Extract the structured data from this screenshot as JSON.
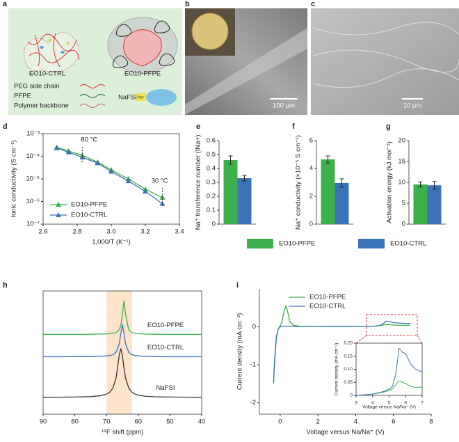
{
  "panel_a": {
    "label": "a",
    "material_1": "EO10-CTRL",
    "material_2": "EO10-PFPE",
    "legend": [
      "PEG side chain",
      "PFPE",
      "Polymer backbone"
    ],
    "salt": "NaFSI",
    "ion": "Na⁺"
  },
  "panel_b": {
    "label": "b",
    "scale_bar": "100 μm"
  },
  "panel_c": {
    "label": "c",
    "scale_bar": "10 μm"
  },
  "legend_efg": {
    "series": [
      {
        "name": "EO10-PFPE",
        "color": "#3cb04a"
      },
      {
        "name": "EO10-CTRL",
        "color": "#3a73b8"
      }
    ]
  },
  "chart_data": [
    {
      "label": "d",
      "type": "line",
      "log_y": true,
      "y_label": "Ionic conductivity (S cm⁻¹)",
      "x_label": "1,000/T (K⁻¹)",
      "x": [
        2.68,
        2.75,
        2.83,
        2.92,
        3.0,
        3.1,
        3.2,
        3.3
      ],
      "series": [
        {
          "name": "EO10-PFPE",
          "color": "#3cb04a",
          "values": [
            0.00025,
            0.00017,
            0.00011,
            5.5e-05,
            2.5e-05,
            1e-05,
            3.5e-06,
            1.5e-06
          ]
        },
        {
          "name": "EO10-CTRL",
          "color": "#3a73b8",
          "values": [
            0.00023,
            0.00015,
            9e-05,
            5e-05,
            2.1e-05,
            8e-06,
            2.8e-06,
            8e-07
          ]
        }
      ],
      "xlim": [
        2.6,
        3.4
      ],
      "xticks": [
        2.6,
        2.8,
        {
          "value": 3,
          "label": "3.0"
        },
        3.2,
        3.4
      ],
      "ylim": [
        1e-07,
        0.001
      ],
      "yticks": [
        {
          "value": 1e-07,
          "label": "10⁻⁷"
        },
        {
          "value": 1e-06,
          "label": "10⁻⁶"
        },
        {
          "value": 1e-05,
          "label": "10⁻⁵"
        },
        {
          "value": 0.0001,
          "label": "10⁻⁴"
        },
        {
          "value": 0.001,
          "label": "10⁻³"
        }
      ],
      "annotations": [
        "80 °C",
        "30 °C"
      ],
      "legend": "lower left"
    },
    {
      "label": "e",
      "type": "bar",
      "y_label": "Na⁺ transference number (tNa+)",
      "values": [
        0.46,
        0.33
      ],
      "errors": [
        0.03,
        0.02
      ],
      "ylim": [
        0,
        0.6
      ],
      "yticks": [
        0,
        0.1,
        0.2,
        0.3,
        0.4,
        0.5,
        0.6
      ]
    },
    {
      "label": "f",
      "type": "bar",
      "y_label": "Na⁺ conductivity (×10⁻⁵ S cm⁻¹)",
      "values": [
        4.65,
        2.95
      ],
      "errors": [
        0.25,
        0.3
      ],
      "ylim": [
        0,
        6
      ],
      "yticks": [
        0,
        2,
        4,
        6
      ]
    },
    {
      "label": "g",
      "type": "bar",
      "y_label": "Activation energy (kJ mol⁻¹)",
      "values": [
        9.5,
        9.3
      ],
      "errors": [
        0.6,
        0.9
      ],
      "ylim": [
        0,
        20
      ],
      "yticks": [
        0,
        5,
        10,
        15,
        20
      ]
    },
    {
      "label": "h",
      "type": "line",
      "x_label": "¹⁹F shift (ppm)",
      "x": [
        90,
        85,
        80,
        75,
        72,
        70,
        69,
        68,
        67,
        66,
        65.5,
        65,
        64.5,
        64,
        63,
        62,
        61,
        60,
        58,
        55,
        50,
        45,
        40
      ],
      "series": [
        {
          "name": "EO10-PFPE",
          "color": "#3cb04a",
          "values": [
            4.5,
            4.5,
            4.5,
            4.51,
            4.52,
            4.53,
            4.54,
            4.57,
            4.63,
            4.83,
            5.13,
            5.92,
            6.9,
            5.92,
            4.83,
            4.63,
            4.57,
            4.54,
            4.52,
            4.51,
            4.5,
            4.5,
            4.5
          ]
        },
        {
          "name": "EO10-CTRL",
          "color": "#3a73b8",
          "values": [
            2.9,
            2.9,
            2.91,
            2.91,
            2.93,
            2.96,
            2.99,
            3.05,
            3.22,
            3.8,
            4.55,
            5.2,
            4.55,
            3.8,
            3.22,
            3.05,
            2.99,
            2.96,
            2.93,
            2.91,
            2.9,
            2.9,
            2.9
          ]
        },
        {
          "name": "NaFSI",
          "color": "#333333",
          "values": [
            0.01,
            0.013,
            0.024,
            0.055,
            0.115,
            0.23,
            0.37,
            0.66,
            1.37,
            2.99,
            3.5,
            2.99,
            2.07,
            1.37,
            0.66,
            0.37,
            0.23,
            0.16,
            0.087,
            0.045,
            0.021,
            0.012,
            0.009
          ]
        }
      ],
      "xlim": [
        90,
        40
      ],
      "xticks": [
        90,
        80,
        70,
        60,
        50,
        40
      ],
      "ylim": [
        -1.2,
        7.6
      ],
      "band": [
        70,
        62
      ],
      "band_color": "#fbe3cc"
    },
    {
      "label": "i",
      "type": "line",
      "y_label": "Current density (mA cm⁻²)",
      "x_label": "Voltage versus Na/Na⁺ (V)",
      "x": [
        -0.35,
        -0.3,
        -0.2,
        -0.1,
        0,
        0.1,
        0.2,
        0.3,
        0.4,
        0.5,
        0.7,
        1,
        2,
        3,
        4,
        4.5,
        5,
        5.3,
        5.5,
        5.6,
        5.8,
        6,
        6.3,
        6.6,
        6.9
      ],
      "series": [
        {
          "name": "EO10-PFPE",
          "color": "#3cb04a",
          "values": [
            -1.5,
            -1.0,
            -0.3,
            -0.05,
            0.02,
            0.15,
            0.4,
            0.55,
            0.4,
            0.15,
            0.04,
            0.02,
            0.01,
            0.01,
            0.01,
            0.01,
            0.02,
            0.03,
            0.05,
            0.06,
            0.06,
            0.05,
            0.04,
            0.04,
            0.04
          ]
        },
        {
          "name": "EO10-CTRL",
          "color": "#3a73b8",
          "values": [
            -1.45,
            -0.9,
            -0.25,
            -0.05,
            0,
            0,
            0.02,
            0.02,
            0.02,
            0.01,
            0.01,
            0.01,
            0.01,
            0.01,
            0.01,
            0.01,
            0.02,
            0.04,
            0.1,
            0.15,
            0.14,
            0.11,
            0.1,
            0.09,
            0.09
          ]
        }
      ],
      "xlim": [
        -1.1,
        8
      ],
      "xticks": [
        0,
        2,
        4,
        6,
        8
      ],
      "ylim": [
        -2.3,
        1.0
      ],
      "yticks": [
        -2,
        -1,
        0
      ],
      "legend": "upper right",
      "inset": {
        "type": "line",
        "y_label": "Current density (mA cm⁻²)",
        "x_label": "Voltage versus Na/Na⁺ (V)",
        "x": [
          3,
          3.5,
          4,
          4.5,
          4.8,
          5,
          5.2,
          5.4,
          5.5,
          5.6,
          5.7,
          5.8,
          6,
          6.3,
          6.6,
          7
        ],
        "series": [
          {
            "color": "#3cb04a",
            "values": [
              0,
              0.002,
              0.005,
              0.01,
              0.015,
              0.02,
              0.025,
              0.04,
              0.05,
              0.055,
              0.055,
              0.05,
              0.045,
              0.035,
              0.03,
              0.032
            ]
          },
          {
            "color": "#3a73b8",
            "values": [
              0,
              0.002,
              0.005,
              0.012,
              0.018,
              0.025,
              0.035,
              0.08,
              0.13,
              0.18,
              0.175,
              0.165,
              0.16,
              0.12,
              0.1,
              0.09
            ]
          }
        ],
        "xlim": [
          3,
          7
        ],
        "xticks": [
          3,
          4,
          5,
          6,
          7
        ],
        "ylim": [
          0,
          0.2
        ],
        "yticks": [
          0,
          0.05,
          {
            "value": 0.1,
            "label": "0.10"
          },
          0.15,
          {
            "value": 0.2,
            "label": "0.20"
          }
        ]
      }
    }
  ]
}
